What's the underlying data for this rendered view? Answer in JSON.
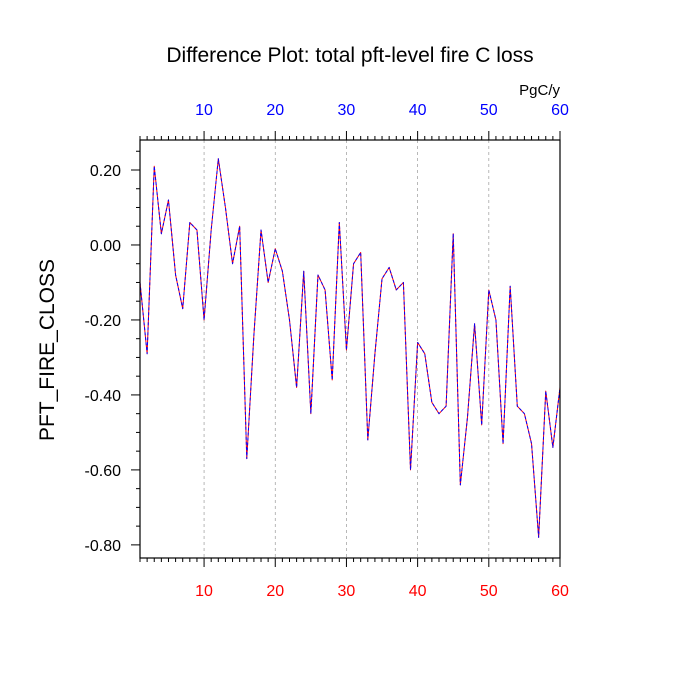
{
  "chart_data": {
    "type": "line",
    "title": "Difference Plot: total pft-level fire C loss",
    "units_label": "PgC/y",
    "ylabel": "PFT_FIRE_CLOSS",
    "xlim": [
      1,
      60
    ],
    "ylim": [
      -0.835,
      0.28
    ],
    "x_ticks": [
      10,
      20,
      30,
      40,
      50,
      60
    ],
    "x_tick_labels": [
      "10",
      "20",
      "30",
      "40",
      "50",
      "60"
    ],
    "y_ticks": [
      0.2,
      0.0,
      -0.2,
      -0.4,
      -0.6,
      -0.8
    ],
    "y_tick_labels": [
      "0.20",
      "0.00",
      "-0.20",
      "-0.40",
      "-0.60",
      "-0.80"
    ],
    "grid": "vertical dashed at major x ticks",
    "colors": {
      "bottom_axis_labels": "#ff0000",
      "top_axis_labels": "#0000ff",
      "series_a": "#ff0000",
      "series_b": "#0000ff"
    },
    "x": [
      1,
      2,
      3,
      4,
      5,
      6,
      7,
      8,
      9,
      10,
      11,
      12,
      13,
      14,
      15,
      16,
      17,
      18,
      19,
      20,
      21,
      22,
      23,
      24,
      25,
      26,
      27,
      28,
      29,
      30,
      31,
      32,
      33,
      34,
      35,
      36,
      37,
      38,
      39,
      40,
      41,
      42,
      43,
      44,
      45,
      46,
      47,
      48,
      49,
      50,
      51,
      52,
      53,
      54,
      55,
      56,
      57,
      58,
      59,
      60
    ],
    "series": [
      {
        "values": [
          -0.1,
          -0.29,
          0.21,
          0.03,
          0.12,
          -0.08,
          -0.17,
          0.06,
          0.04,
          -0.2,
          0.04,
          0.23,
          0.1,
          -0.05,
          0.05,
          -0.57,
          -0.24,
          0.04,
          -0.1,
          -0.01,
          -0.07,
          -0.2,
          -0.38,
          -0.07,
          -0.45,
          -0.08,
          -0.12,
          -0.36,
          0.06,
          -0.28,
          -0.05,
          -0.02,
          -0.52,
          -0.29,
          -0.09,
          -0.06,
          -0.12,
          -0.1,
          -0.6,
          -0.26,
          -0.29,
          -0.42,
          -0.45,
          -0.43,
          0.03,
          -0.64,
          -0.46,
          -0.21,
          -0.48,
          -0.12,
          -0.2,
          -0.53,
          -0.11,
          -0.43,
          -0.45,
          -0.53,
          -0.78,
          -0.39,
          -0.54,
          -0.38
        ]
      }
    ]
  }
}
